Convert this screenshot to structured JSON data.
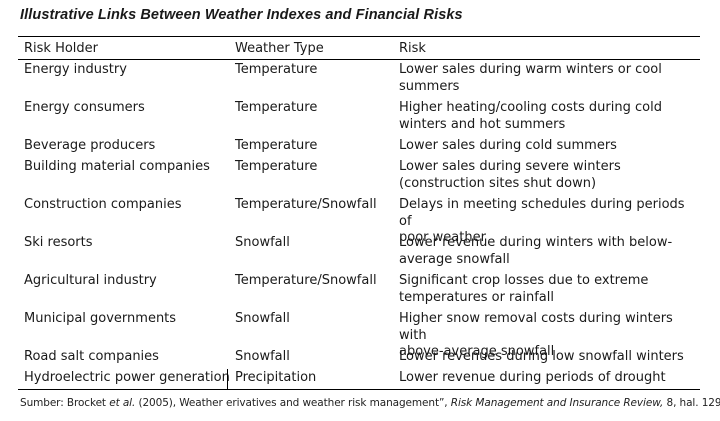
{
  "title": "Illustrative Links Between Weather Indexes and Financial Risks",
  "table": {
    "headers": [
      "Risk Holder",
      "Weather Type",
      "Risk"
    ],
    "rows": [
      {
        "holder": "Energy industry",
        "weather": "Temperature",
        "risk_lines": [
          "Lower sales during warm winters or cool",
          "summers"
        ]
      },
      {
        "holder": "Energy consumers",
        "weather": "Temperature",
        "risk_lines": [
          "Higher heating/cooling costs during cold",
          "winters and hot summers"
        ]
      },
      {
        "holder": "Beverage producers",
        "weather": "Temperature",
        "risk_lines": [
          "Lower sales during cold summers"
        ]
      },
      {
        "holder": "Building material companies",
        "weather": "Temperature",
        "risk_lines": [
          "Lower sales during severe winters",
          "(construction sites shut down)"
        ]
      },
      {
        "holder": "Construction companies",
        "weather": "Temperature/Snowfall",
        "risk_lines": [
          "Delays in meeting schedules during periods of",
          "poor weather"
        ]
      },
      {
        "holder": "Ski resorts",
        "weather": "Snowfall",
        "risk_lines": [
          "Lower revenue during winters with below-",
          "average snowfall"
        ]
      },
      {
        "holder": "Agricultural industry",
        "weather": "Temperature/Snowfall",
        "risk_lines": [
          "Significant crop losses due to extreme",
          "temperatures or rainfall"
        ]
      },
      {
        "holder": "Municipal governments",
        "weather": "Snowfall",
        "risk_lines": [
          "Higher snow removal costs during winters with",
          "above-average snowfall"
        ]
      },
      {
        "holder": "Road salt companies",
        "weather": "Snowfall",
        "risk_lines": [
          "Lower revenues during low snowfall winters"
        ]
      },
      {
        "holder": "Hydroelectric power generation",
        "weather": "Precipitation",
        "risk_lines": [
          "Lower revenue during periods of drought"
        ]
      }
    ]
  },
  "source": {
    "prefix": "Sumber: Brocket ",
    "etal": "et al.",
    "middle": " (2005), Weather erivatives and weather risk management”,  ",
    "journal": "Risk Management and Insurance Review,",
    "suffix": " 8, hal. 129"
  }
}
